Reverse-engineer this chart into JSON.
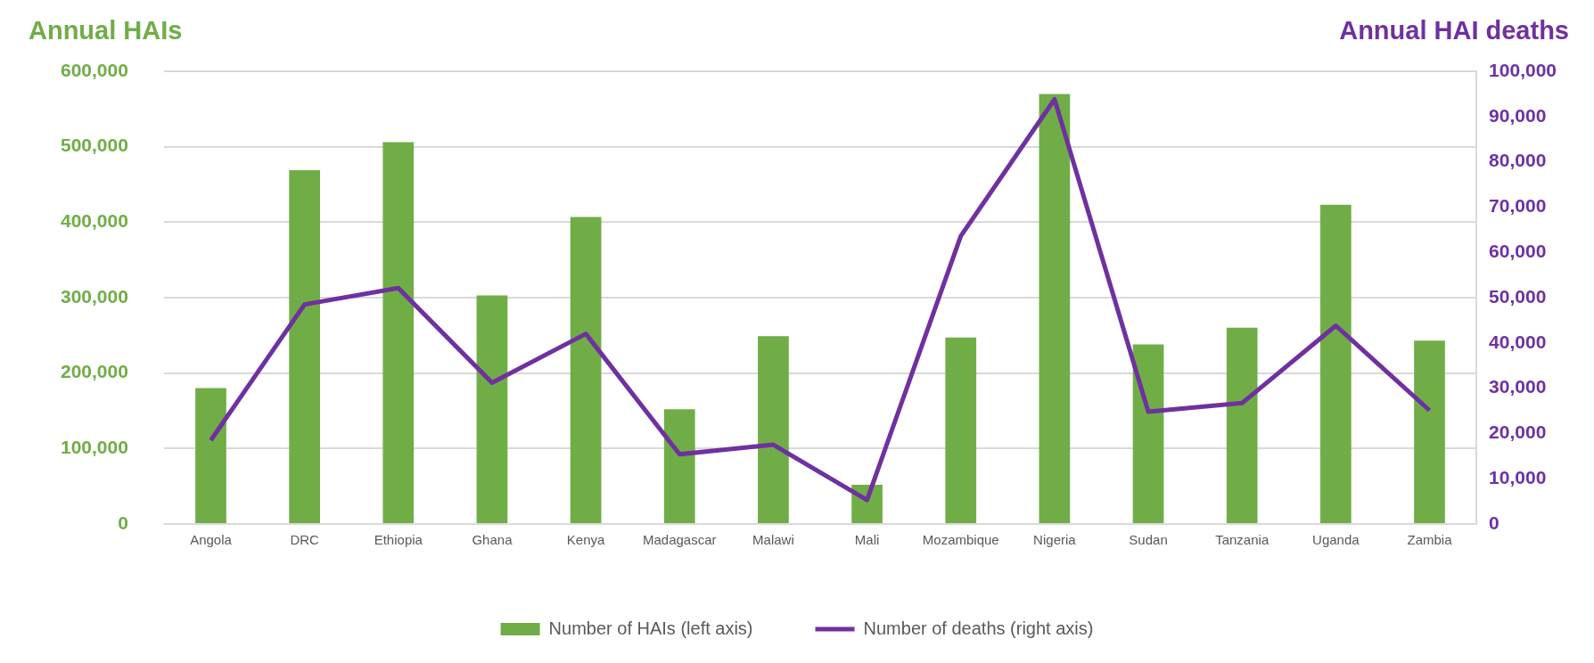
{
  "chart_data": {
    "type": "bar",
    "ylabel": "Annual HAIs",
    "y2label": "Annual HAI deaths",
    "categories": [
      "Angola",
      "DRC",
      "Ethiopia",
      "Ghana",
      "Kenya",
      "Madagascar",
      "Malawi",
      "Mali",
      "Mozambique",
      "Nigeria",
      "Sudan",
      "Tanzania",
      "Uganda",
      "Zambia"
    ],
    "series": [
      {
        "name": "Number of HAIs (left axis)",
        "color": "#70ad47",
        "values": [
          180000,
          469000,
          506000,
          303000,
          407000,
          152000,
          249000,
          52000,
          247000,
          570000,
          238000,
          260000,
          423000,
          243000
        ]
      },
      {
        "name": "Number of deaths (right axis)",
        "type": "line",
        "axis": "y2",
        "color": "#7030a0",
        "values": [
          18500,
          48500,
          52100,
          31200,
          42000,
          15400,
          17500,
          5300,
          63600,
          93800,
          24800,
          26700,
          43800,
          25100
        ]
      }
    ],
    "ylim": [
      0,
      600000
    ],
    "yticks": [
      {
        "value": 0,
        "label": "0"
      },
      {
        "value": 100000,
        "label": "100,000"
      },
      {
        "value": 200000,
        "label": "200,000"
      },
      {
        "value": 300000,
        "label": "300,000"
      },
      {
        "value": 400000,
        "label": "400,000"
      },
      {
        "value": 500000,
        "label": "500,000"
      },
      {
        "value": 600000,
        "label": "600,000"
      }
    ],
    "y2lim": [
      0,
      100000
    ],
    "y2ticks": [
      {
        "value": 0,
        "label": "0"
      },
      {
        "value": 10000,
        "label": "10,000"
      },
      {
        "value": 20000,
        "label": "20,000"
      },
      {
        "value": 30000,
        "label": "30,000"
      },
      {
        "value": 40000,
        "label": "40,000"
      },
      {
        "value": 50000,
        "label": "50,000"
      },
      {
        "value": 60000,
        "label": "60,000"
      },
      {
        "value": 70000,
        "label": "70,000"
      },
      {
        "value": 80000,
        "label": "80,000"
      },
      {
        "value": 90000,
        "label": "90,000"
      },
      {
        "value": 100000,
        "label": "100,000"
      }
    ],
    "grid": "y",
    "legend": "bottom",
    "marker": "none",
    "line_style": "solid"
  }
}
